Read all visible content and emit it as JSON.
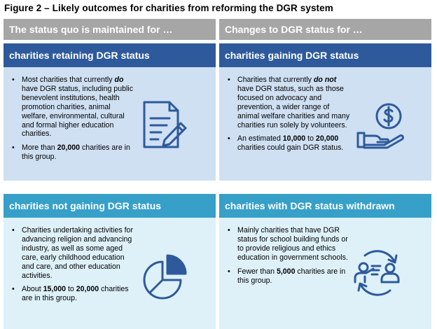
{
  "figure_title": "Figure 2 – Likely outcomes for charities from reforming the DGR system",
  "headers": {
    "left": "The status quo is maintained for …",
    "right": "Changes to DGR status for …"
  },
  "panels": {
    "retaining": {
      "title": "charities retaining DGR status",
      "icon": "document-pen-icon",
      "b1_pre": "Most charities that currently ",
      "b1_em": "do",
      "b1_post": " have DGR status, including public benevolent institutions, health promotion charities, animal welfare, environmental, cultural and formal higher education charities.",
      "b2_pre": "More than ",
      "b2_num": "20,000",
      "b2_post": " charities are in this group."
    },
    "gaining": {
      "title": "charities gaining DGR status",
      "icon": "hand-dollar-coin-icon",
      "b1_pre": "Charities that currently ",
      "b1_em": "do not",
      "b1_post": " have DGR status, such as those focused on advocacy and prevention, a wider range of animal welfare charities and many charities run solely by volunteers.",
      "b2_pre": "An estimated ",
      "b2_num1": "10,000",
      "b2_mid": " to ",
      "b2_num2": "20,000",
      "b2_post": " charities could gain DGR status."
    },
    "not_gaining": {
      "title": "charities not gaining DGR status",
      "icon": "pie-chart-icon",
      "b1": "Charities undertaking activities for advancing religion and advancing industry, as well as some aged care, early childhood education and care, and other education activities.",
      "b2_pre": "About ",
      "b2_num1": "15,000",
      "b2_mid": " to ",
      "b2_num2": "20,000",
      "b2_post": " charities are in this group."
    },
    "withdrawn": {
      "title": "charities with DGR status withdrawn",
      "icon": "people-exchange-icon",
      "b1": "Mainly charities that have DGR status for school building funds or to provide religious and ethics education in government schools.",
      "b2_pre": "Fewer than ",
      "b2_num": "5,000",
      "b2_post": " charities are in this group."
    }
  },
  "colors": {
    "header_grey": "#a6a6a6",
    "dark_blue": "#2e5a9c",
    "light_blue": "#36a0c9",
    "pale_blue": "#cfe0f3",
    "pale_cyan": "#def1f9"
  }
}
